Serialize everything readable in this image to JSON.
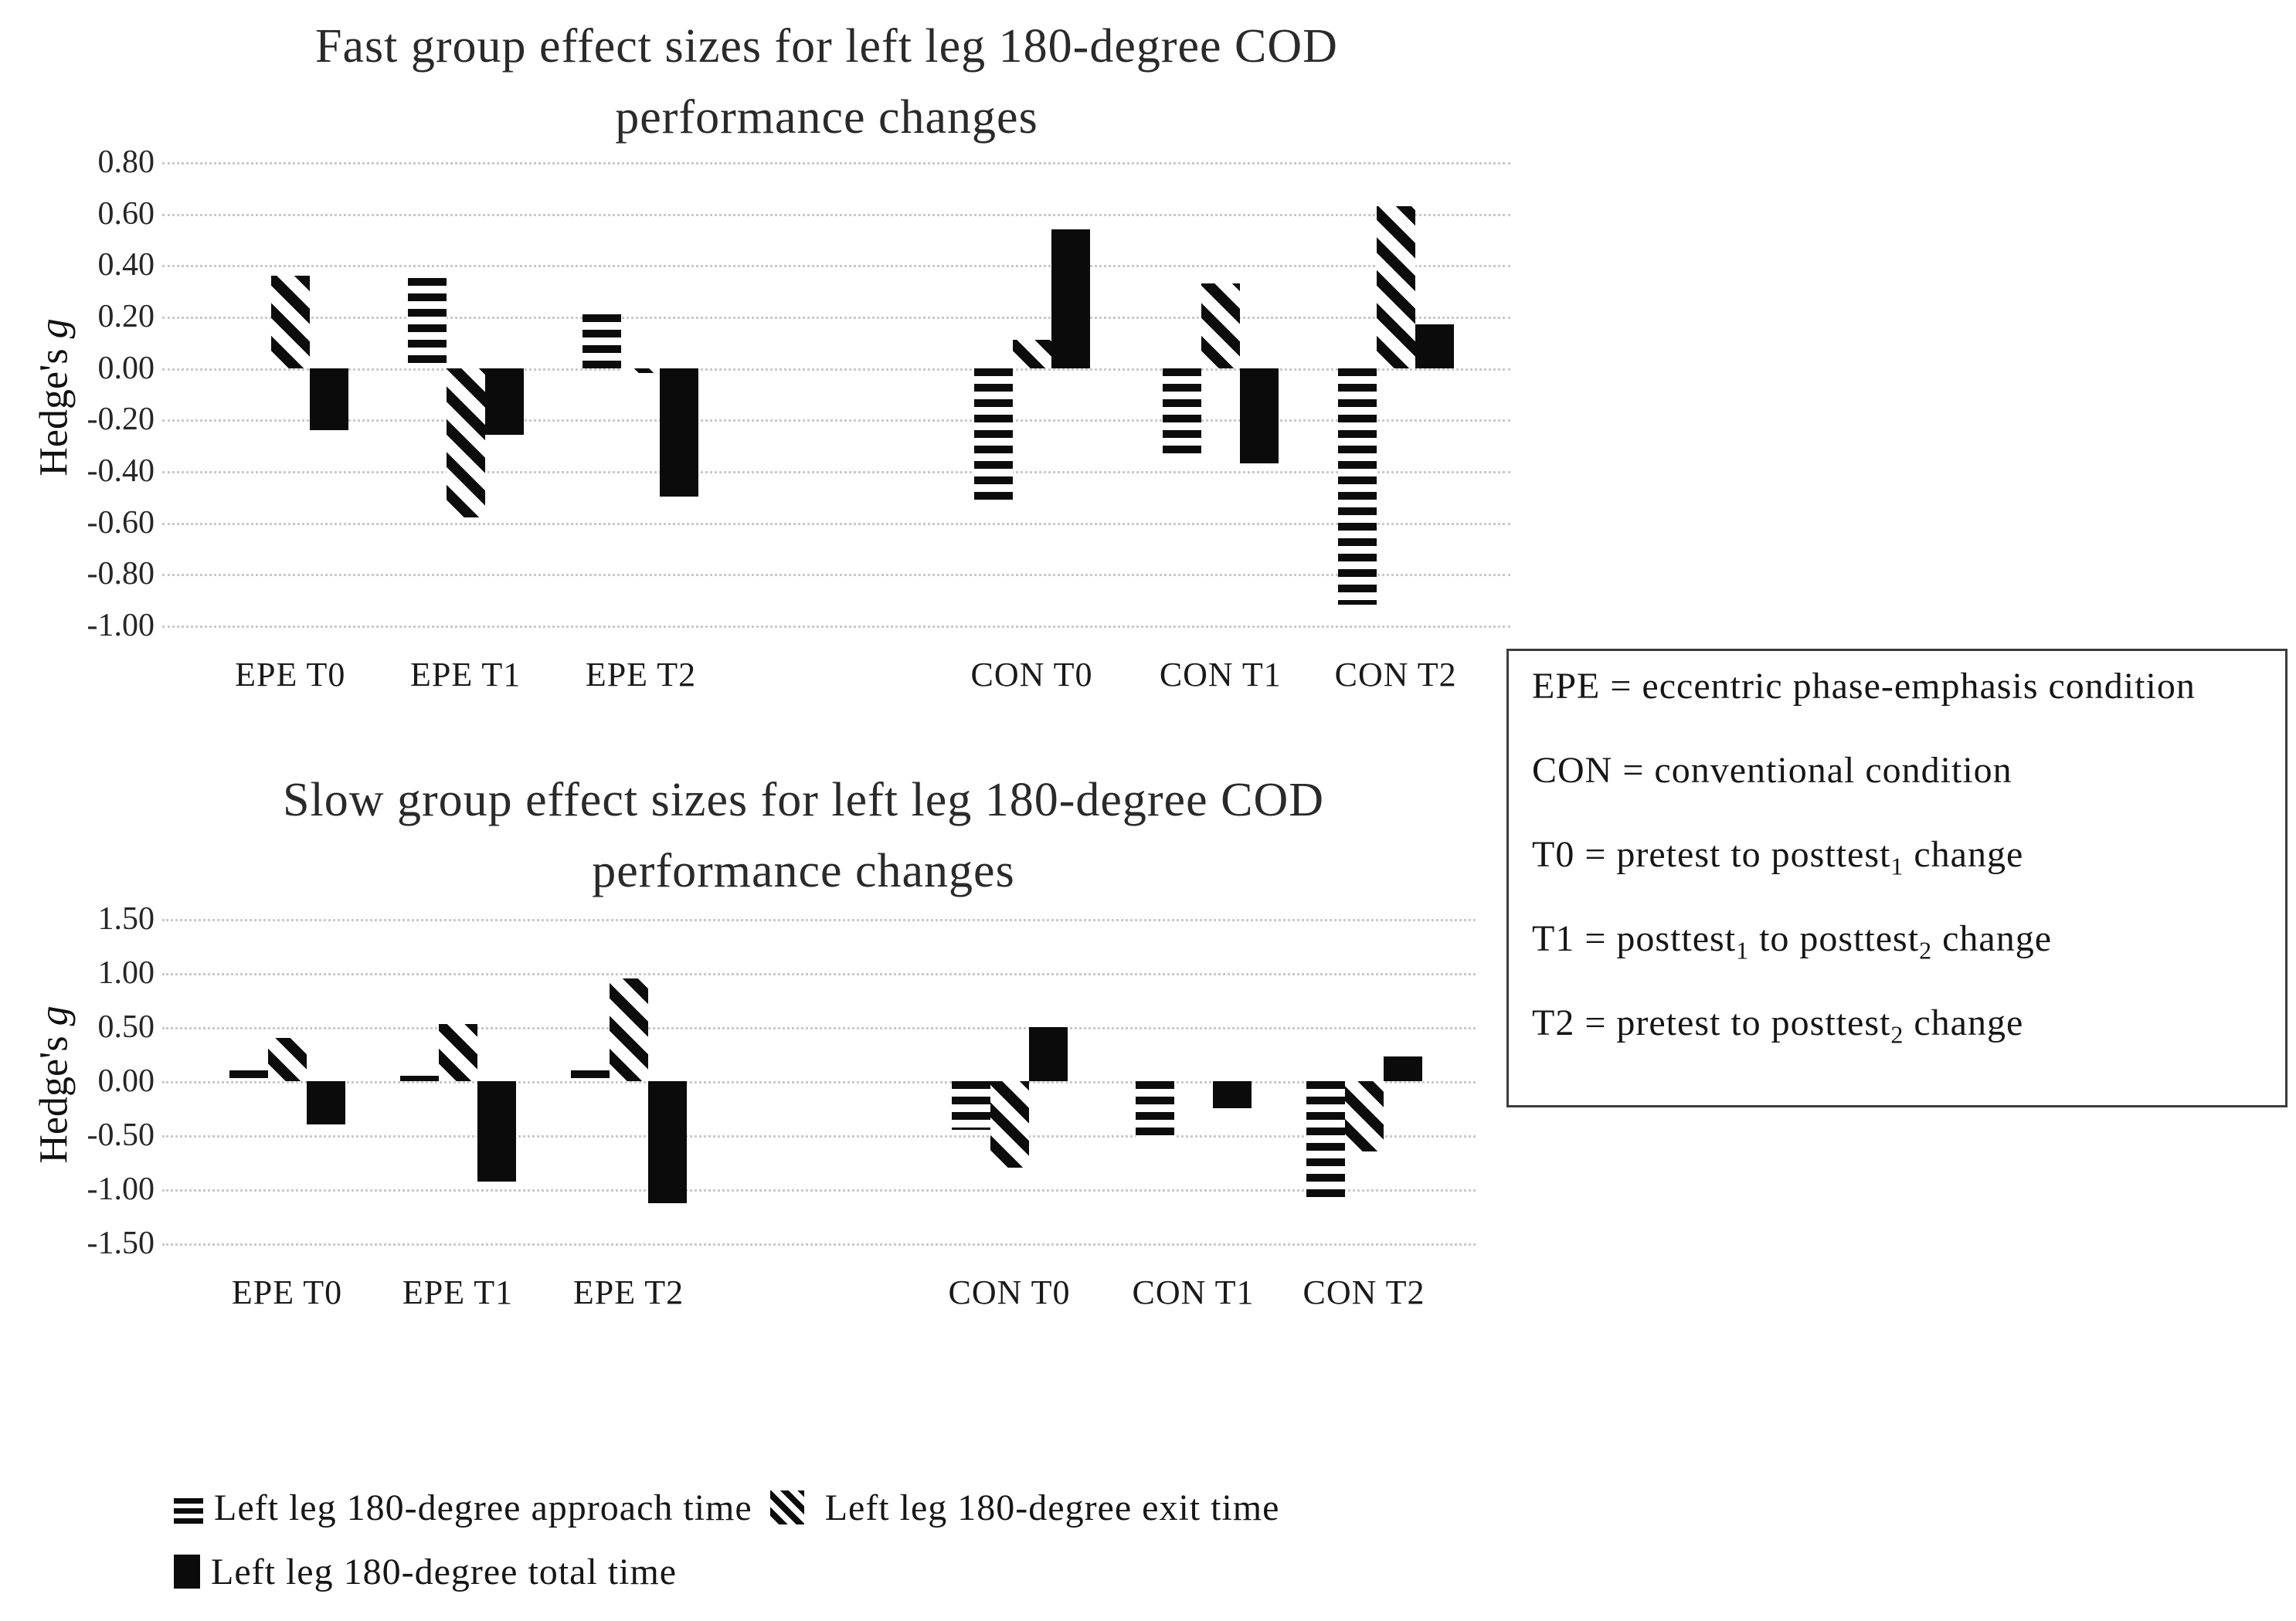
{
  "axis_label_parts": {
    "regular": "Hedge's ",
    "italic": "g"
  },
  "colors": {
    "bar_black": "#0b0b0b",
    "gridline": "#c9c9c9",
    "text": "#1f1f1f",
    "background": "#ffffff"
  },
  "chart_data": [
    {
      "type": "bar",
      "title": "Fast group effect sizes for left leg 180-degree COD performance changes",
      "title_lines": [
        "Fast group effect sizes for left leg 180-degree COD",
        "performance changes"
      ],
      "ylabel": "Hedge's g",
      "xlabel": "",
      "categories": [
        "EPE T0",
        "EPE T1",
        "EPE T2",
        "CON T0",
        "CON T1",
        "CON T2"
      ],
      "series": [
        {
          "name": "Left leg 180-degree approach time",
          "key": "approach",
          "pattern": "horizontal-stripes",
          "values": [
            0.0,
            0.35,
            0.21,
            -0.52,
            -0.34,
            -0.92
          ]
        },
        {
          "name": "Left leg 180-degree exit time",
          "key": "exit",
          "pattern": "diagonal-stripes",
          "values": [
            0.36,
            -0.58,
            -0.02,
            0.11,
            0.33,
            0.63
          ]
        },
        {
          "name": "Left leg 180-degree total time",
          "key": "total",
          "pattern": "solid-black",
          "values": [
            -0.24,
            -0.26,
            -0.5,
            0.54,
            -0.37,
            0.17
          ]
        }
      ],
      "ylim": [
        -1.0,
        0.8
      ],
      "ytick_step": 0.2,
      "ytick_labels": [
        "0.80",
        "0.60",
        "0.40",
        "0.20",
        "0.00",
        "-0.20",
        "-0.40",
        "-0.60",
        "-0.80",
        "-1.00"
      ],
      "grid": true,
      "legend_position": "none",
      "layout": {
        "group_center_fractions": [
          0.095,
          0.225,
          0.355,
          0.645,
          0.785,
          0.915
        ]
      }
    },
    {
      "type": "bar",
      "title": "Slow group effect sizes for left leg 180-degree COD performance changes",
      "title_lines": [
        "Slow group effect sizes for left leg 180-degree COD",
        "performance changes"
      ],
      "ylabel": "Hedge's g",
      "xlabel": "",
      "categories": [
        "EPE T0",
        "EPE T1",
        "EPE T2",
        "CON T0",
        "CON T1",
        "CON T2"
      ],
      "series": [
        {
          "name": "Left leg 180-degree approach time",
          "key": "approach",
          "pattern": "horizontal-stripes",
          "values": [
            0.1,
            0.05,
            0.1,
            -0.45,
            -0.52,
            -1.1
          ]
        },
        {
          "name": "Left leg 180-degree exit time",
          "key": "exit",
          "pattern": "diagonal-stripes",
          "values": [
            0.4,
            0.53,
            0.95,
            -0.8,
            0.0,
            -0.65
          ]
        },
        {
          "name": "Left leg 180-degree total time",
          "key": "total",
          "pattern": "solid-black",
          "values": [
            -0.4,
            -0.93,
            -1.13,
            0.5,
            -0.25,
            0.23
          ]
        }
      ],
      "ylim": [
        -1.5,
        1.5
      ],
      "ytick_step": 0.5,
      "ytick_labels": [
        "1.50",
        "1.00",
        "0.50",
        "0.00",
        "-0.50",
        "-1.00",
        "-1.50"
      ],
      "grid": true,
      "legend_position": "none",
      "layout": {
        "group_center_fractions": [
          0.095,
          0.225,
          0.355,
          0.645,
          0.785,
          0.915
        ]
      }
    }
  ],
  "legend_box": {
    "lines": [
      [
        {
          "t": "EPE = eccentric  phase-emphasis  condition"
        }
      ],
      [
        {
          "t": "CON = conventional  condition"
        }
      ],
      [
        {
          "t": "T0 = pretest  to posttest"
        },
        {
          "t": "1",
          "sub": true
        },
        {
          "t": "  change"
        }
      ],
      [
        {
          "t": "T1 = posttest"
        },
        {
          "t": "1",
          "sub": true
        },
        {
          "t": "  to posttest"
        },
        {
          "t": "2",
          "sub": true
        },
        {
          "t": "  change"
        }
      ],
      [
        {
          "t": "T2 = pretest  to posttest"
        },
        {
          "t": "2",
          "sub": true
        },
        {
          "t": "  change"
        }
      ]
    ]
  },
  "marker_legend": {
    "lines": [
      [
        {
          "icon": "approach"
        },
        {
          "t": "Left leg 180-degree approach time "
        },
        {
          "icon": "exit"
        },
        {
          "t": " Left leg 180-degree exit time"
        }
      ],
      [
        {
          "icon": "total"
        },
        {
          "t": "Left leg 180-degree total time"
        }
      ]
    ]
  }
}
